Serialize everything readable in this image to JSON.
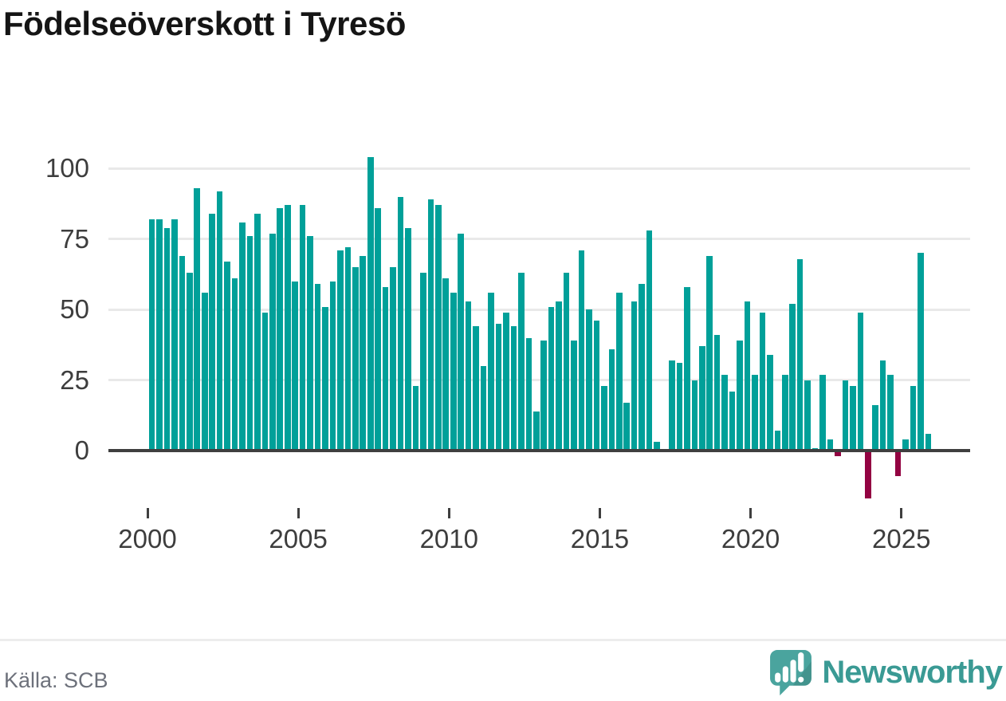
{
  "title": "Födelseöverskott i Tyresö",
  "source": "Källa: SCB",
  "branding": {
    "wordmark": "Newsworthy",
    "logo_icon": "newsworthy-speech-bubble-bar-chart-icon"
  },
  "colors": {
    "positive_bar": "#00a099",
    "negative_bar": "#930342",
    "brand_teal": "#3a9a94",
    "logo_bubble": "#4aa49e",
    "gridline": "#e9e9e9",
    "axis": "#3f3f3f",
    "title_text": "#151515",
    "tick_text": "#3d3d3d",
    "source_text": "#6d717b"
  },
  "chart_data": {
    "type": "bar",
    "title": "Födelseöverskott i Tyresö",
    "x_unit": "quarter",
    "x_start": "2000-Q1",
    "x_end": "2025-Q4",
    "periods_per_year": 4,
    "x_tick_labels": [
      "2000",
      "2005",
      "2010",
      "2015",
      "2020",
      "2025"
    ],
    "y_tick_labels": [
      "0",
      "25",
      "50",
      "75",
      "100"
    ],
    "y_ticks": [
      0,
      25,
      50,
      75,
      100
    ],
    "ylim": [
      -20,
      110
    ],
    "grid": "horizontal",
    "legend": "none",
    "values": [
      82,
      82,
      79,
      82,
      69,
      63,
      93,
      56,
      84,
      92,
      67,
      61,
      81,
      76,
      84,
      49,
      77,
      86,
      87,
      60,
      87,
      76,
      59,
      51,
      60,
      71,
      72,
      65,
      69,
      104,
      86,
      58,
      65,
      90,
      79,
      23,
      63,
      89,
      87,
      61,
      56,
      77,
      53,
      44,
      30,
      56,
      45,
      49,
      44,
      63,
      40,
      14,
      39,
      51,
      53,
      63,
      39,
      71,
      50,
      46,
      23,
      36,
      56,
      17,
      53,
      59,
      78,
      3,
      0,
      32,
      31,
      58,
      25,
      37,
      69,
      41,
      27,
      21,
      39,
      53,
      27,
      49,
      34,
      7,
      27,
      52,
      68,
      25,
      1,
      27,
      4,
      -2,
      25,
      23,
      49,
      -17,
      16,
      32,
      27,
      -9,
      4,
      23,
      70,
      6
    ]
  }
}
